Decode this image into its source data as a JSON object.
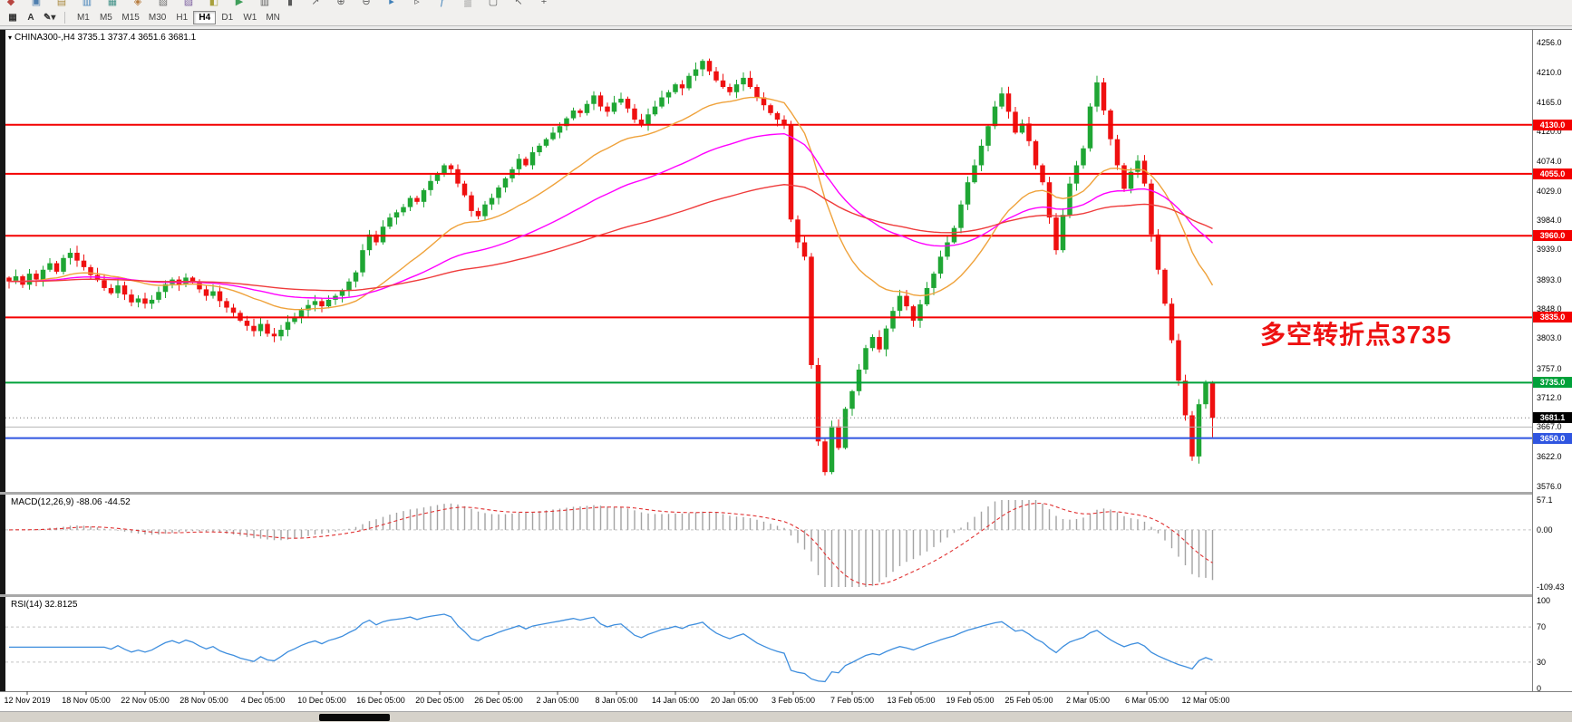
{
  "toolbar": {
    "row1_icons": [
      {
        "name": "new-order",
        "glyph": "◆",
        "color": "#b8453f"
      },
      {
        "name": "new-chart",
        "glyph": "▣",
        "color": "#4f7fae"
      },
      {
        "name": "profiles",
        "glyph": "▤",
        "color": "#a8873b"
      },
      {
        "name": "market-watch",
        "glyph": "▥",
        "color": "#3f7fb8"
      },
      {
        "name": "data-window",
        "glyph": "▦",
        "color": "#3f8f86"
      },
      {
        "name": "navigator",
        "glyph": "◈",
        "color": "#b87d3f"
      },
      {
        "name": "terminal",
        "glyph": "▧",
        "color": "#6f6f6f"
      },
      {
        "name": "strategy-tester",
        "glyph": "▨",
        "color": "#7a5d9e"
      },
      {
        "name": "metaeditor",
        "glyph": "◧",
        "color": "#a8a03b"
      },
      {
        "name": "autotrading",
        "glyph": "▶",
        "color": "#3f9e5a"
      },
      {
        "name": "chart-bars",
        "glyph": "▥",
        "color": "#5a5a5a"
      },
      {
        "name": "chart-candles",
        "glyph": "▮",
        "color": "#5a5a5a"
      },
      {
        "name": "chart-line",
        "glyph": "↗",
        "color": "#5a5a5a"
      },
      {
        "name": "zoom-in",
        "glyph": "⊕",
        "color": "#5a5a5a"
      },
      {
        "name": "zoom-out",
        "glyph": "⊖",
        "color": "#5a5a5a"
      },
      {
        "name": "auto-scroll",
        "glyph": "▸",
        "color": "#3f7fb8"
      },
      {
        "name": "chart-shift",
        "glyph": "▹",
        "color": "#5a5a5a"
      },
      {
        "name": "indicators",
        "glyph": "ƒ",
        "color": "#3f7fb8"
      },
      {
        "name": "periods",
        "glyph": "▒",
        "color": "#5a5a5a"
      },
      {
        "name": "templates",
        "glyph": "▢",
        "color": "#5a5a5a"
      },
      {
        "name": "cursor",
        "glyph": "↖",
        "color": "#5a5a5a"
      },
      {
        "name": "crosshair",
        "glyph": "+",
        "color": "#5a5a5a"
      }
    ],
    "tools": [
      {
        "name": "chart-grid",
        "glyph": "▦"
      },
      {
        "name": "text-label",
        "glyph": "A"
      },
      {
        "name": "drawing-tools",
        "glyph": "✎▾"
      }
    ],
    "timeframes": [
      "M1",
      "M5",
      "M15",
      "M30",
      "H1",
      "H4",
      "D1",
      "W1",
      "MN"
    ],
    "active_timeframe": "H4"
  },
  "chart_data": {
    "type": "candlestick",
    "symbol": "CHINA300-",
    "period": "H4",
    "title_line": "CHINA300-,H4 3735.1 3737.4 3651.6 3681.1",
    "last_bar": {
      "open": 3735.1,
      "high": 3737.4,
      "low": 3651.6,
      "close": 3681.1
    },
    "price_axis": {
      "top": 4256.0,
      "bottom": 3576.0,
      "ticks": [
        "4256.0",
        "4210.0",
        "4165.0",
        "4120.0",
        "4074.0",
        "4029.0",
        "3984.0",
        "3939.0",
        "3893.0",
        "3848.0",
        "3803.0",
        "3757.0",
        "3712.0",
        "3667.0",
        "3622.0",
        "3576.0"
      ]
    },
    "time_axis": [
      "12 Nov 2019",
      "18 Nov 05:00",
      "22 Nov 05:00",
      "28 Nov 05:00",
      "4 Dec 05:00",
      "10 Dec 05:00",
      "16 Dec 05:00",
      "20 Dec 05:00",
      "26 Dec 05:00",
      "2 Jan 05:00",
      "8 Jan 05:00",
      "14 Jan 05:00",
      "20 Jan 05:00",
      "3 Feb 05:00",
      "7 Feb 05:00",
      "13 Feb 05:00",
      "19 Feb 05:00",
      "25 Feb 05:00",
      "2 Mar 05:00",
      "6 Mar 05:00",
      "12 Mar 05:00"
    ],
    "closes": [
      3890,
      3898,
      3885,
      3902,
      3893,
      3908,
      3918,
      3905,
      3926,
      3934,
      3922,
      3912,
      3900,
      3892,
      3880,
      3872,
      3884,
      3870,
      3858,
      3864,
      3856,
      3862,
      3874,
      3886,
      3893,
      3885,
      3896,
      3890,
      3878,
      3868,
      3875,
      3860,
      3850,
      3842,
      3830,
      3822,
      3814,
      3825,
      3810,
      3806,
      3816,
      3828,
      3836,
      3846,
      3854,
      3860,
      3852,
      3862,
      3868,
      3876,
      3890,
      3904,
      3938,
      3962,
      3950,
      3974,
      3988,
      3996,
      4004,
      4018,
      4012,
      4030,
      4044,
      4056,
      4068,
      4062,
      4040,
      4022,
      3998,
      3990,
      4008,
      4018,
      4034,
      4048,
      4062,
      4078,
      4068,
      4088,
      4098,
      4108,
      4118,
      4128,
      4140,
      4152,
      4148,
      4162,
      4175,
      4158,
      4150,
      4164,
      4170,
      4155,
      4138,
      4130,
      4146,
      4158,
      4172,
      4180,
      4192,
      4186,
      4205,
      4215,
      4228,
      4212,
      4198,
      4188,
      4180,
      4192,
      4202,
      4188,
      4172,
      4160,
      4148,
      4138,
      4130,
      3985,
      3950,
      3928,
      3762,
      3645,
      3598,
      3668,
      3635,
      3695,
      3722,
      3755,
      3788,
      3805,
      3786,
      3818,
      3845,
      3868,
      3852,
      3830,
      3855,
      3880,
      3902,
      3928,
      3950,
      3972,
      4008,
      4042,
      4068,
      4098,
      4128,
      4158,
      4178,
      4150,
      4118,
      4132,
      4105,
      4068,
      4042,
      3988,
      3938,
      3992,
      4040,
      4068,
      4094,
      4158,
      4195,
      4152,
      4108,
      4068,
      4032,
      4058,
      4075,
      4040,
      3962,
      3908,
      3856,
      3800,
      3738,
      3685,
      3622,
      3702,
      3735,
      3681
    ],
    "colors": {
      "bull": "#1fa634",
      "bear": "#ef1010",
      "background": "#ffffff"
    },
    "levels": [
      {
        "value": 4130.0,
        "label": "4130.0",
        "color": "#f40000",
        "width": 2,
        "badge": true
      },
      {
        "value": 4055.0,
        "label": "4055.0",
        "color": "#f40000",
        "width": 2,
        "badge": true
      },
      {
        "value": 3960.0,
        "label": "3960.0",
        "color": "#f40000",
        "width": 2,
        "badge": true
      },
      {
        "value": 3835.0,
        "label": "3835.0",
        "color": "#f40000",
        "width": 2,
        "badge": true
      },
      {
        "value": 3735.0,
        "label": "3735.0",
        "color": "#00a13a",
        "width": 2,
        "badge": true
      },
      {
        "value": 3667.0,
        "label": "",
        "color": "#b4b4b4",
        "width": 1,
        "badge": false
      },
      {
        "value": 3650.0,
        "label": "3650.0",
        "color": "#2f55e0",
        "width": 2,
        "badge": true
      }
    ],
    "current_price": {
      "value": 3681.1,
      "label": "3681.1",
      "badge_color": "#000000"
    },
    "moving_averages": [
      {
        "name": "fast",
        "period": 24,
        "color": "#efa23b"
      },
      {
        "name": "medium",
        "period": 55,
        "color": "#ff00ff"
      },
      {
        "name": "slow",
        "period": 120,
        "color": "#ef3b3b"
      }
    ],
    "annotation": {
      "text": "多空转折点3735",
      "color": "#ee1111"
    }
  },
  "indicators": {
    "macd": {
      "label": "MACD(12,26,9) -88.06 -44.52",
      "fast": 12,
      "slow": 26,
      "signal": 9,
      "value": -88.06,
      "signal_value": -44.52,
      "axis": [
        "57.1",
        "0.00",
        "-109.43"
      ],
      "max": 57.1,
      "min": -109.43,
      "histogram_color": "#a3a3a3",
      "signal_color": "#e03030"
    },
    "rsi": {
      "label": "RSI(14) 32.8125",
      "period": 14,
      "value": 32.8125,
      "axis": [
        "100",
        "70",
        "30",
        "0"
      ],
      "max": 100,
      "min": 0,
      "levels": [
        70,
        30
      ],
      "line_color": "#3e8ede"
    }
  }
}
